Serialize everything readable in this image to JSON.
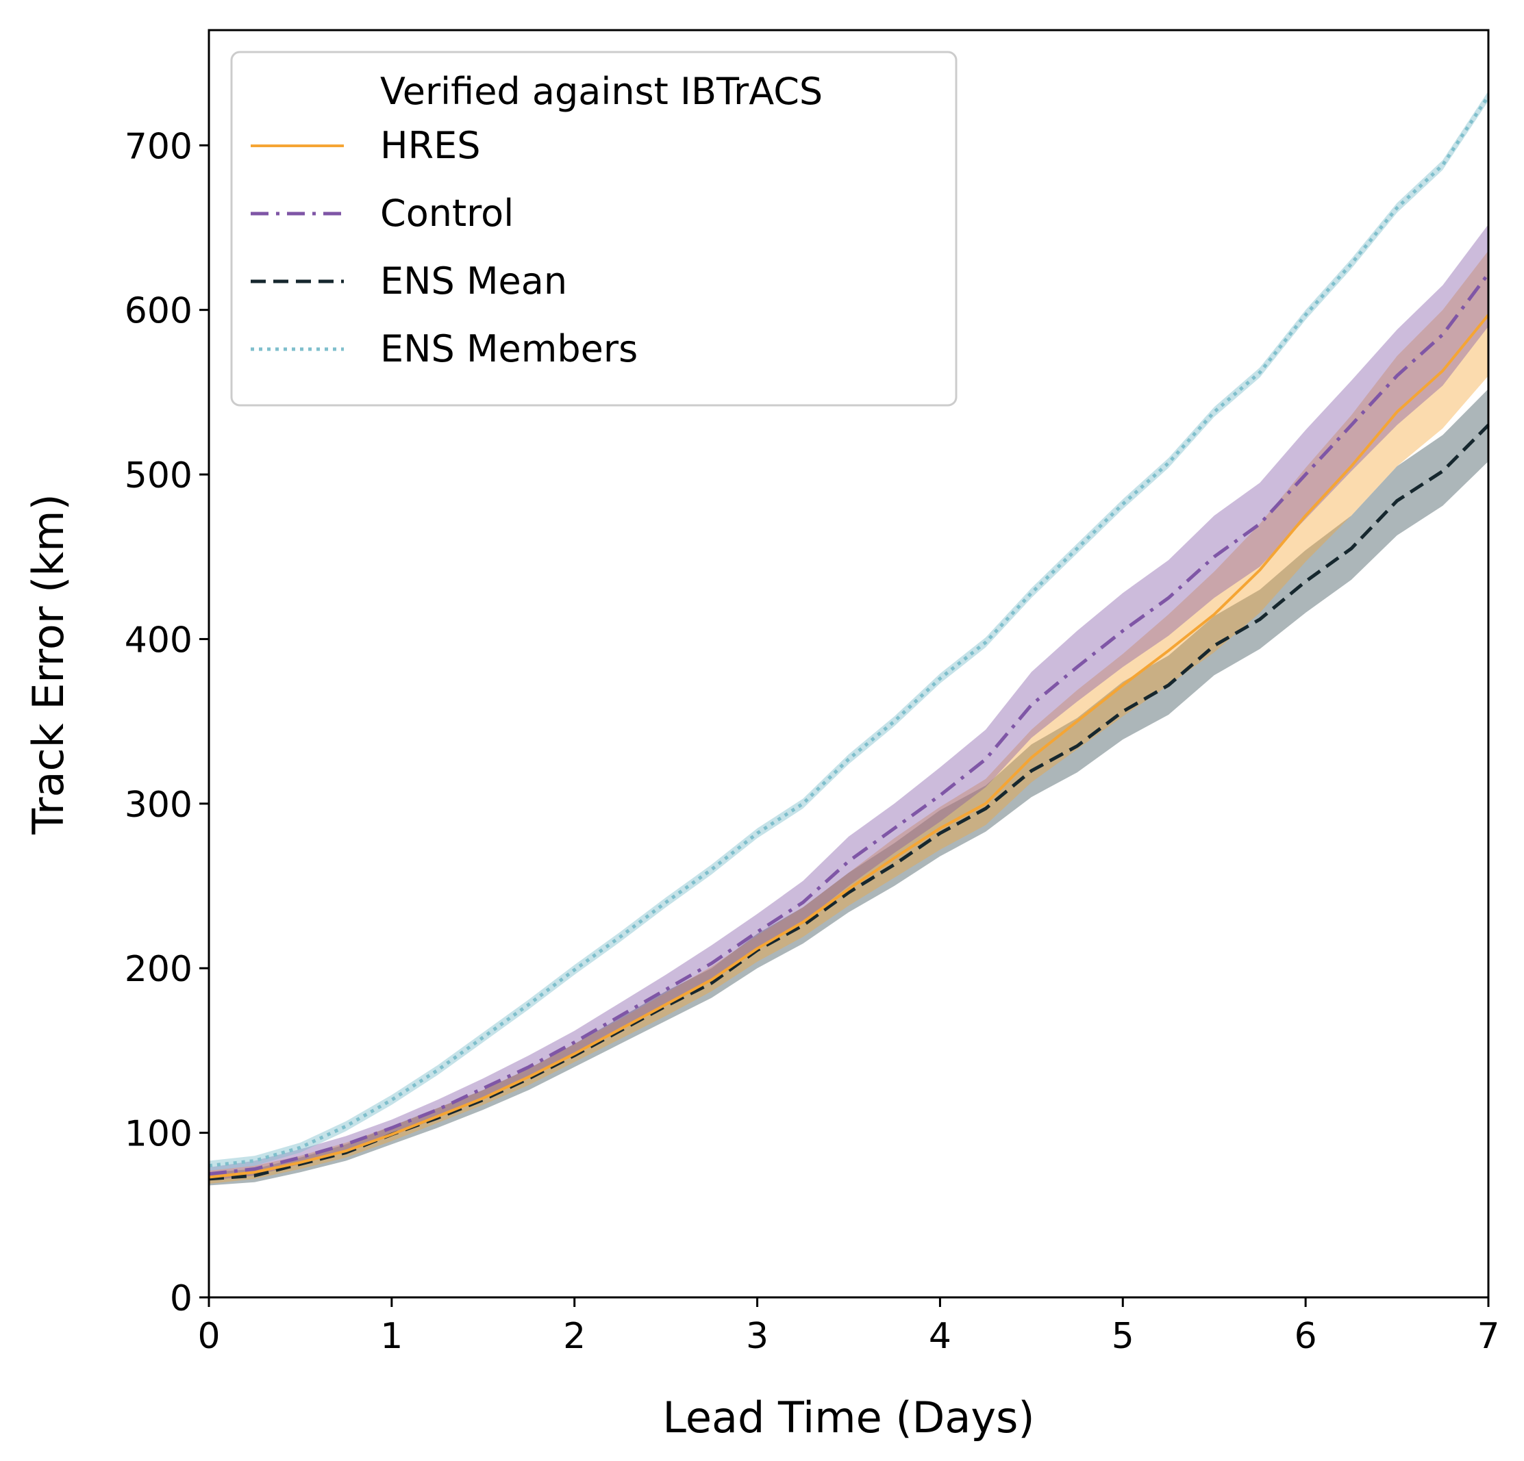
{
  "chart_data": {
    "type": "line",
    "title": "",
    "xlabel": "Lead Time (Days)",
    "ylabel": "Track Error (km)",
    "xlim": [
      0,
      7
    ],
    "ylim": [
      0,
      770
    ],
    "xticks": [
      "0",
      "1",
      "2",
      "3",
      "4",
      "5",
      "6",
      "7"
    ],
    "yticks": [
      "0",
      "100",
      "200",
      "300",
      "400",
      "500",
      "600",
      "700"
    ],
    "grid": false,
    "legend": {
      "position": "top-left",
      "title": "Verified against IBTrACS"
    },
    "x": [
      0,
      0.25,
      0.5,
      0.75,
      1,
      1.25,
      1.5,
      1.75,
      2,
      2.25,
      2.5,
      2.75,
      3,
      3.25,
      3.5,
      3.75,
      4,
      4.25,
      4.5,
      4.75,
      5,
      5.25,
      5.5,
      5.75,
      6,
      6.25,
      6.5,
      6.75,
      7
    ],
    "series": [
      {
        "name": "HRES",
        "color": "#f5a534",
        "style": "solid",
        "values": [
          73,
          76,
          82,
          89,
          99,
          110,
          121,
          134,
          148,
          163,
          178,
          193,
          212,
          228,
          248,
          267,
          285,
          300,
          328,
          350,
          372,
          393,
          415,
          442,
          475,
          505,
          538,
          563,
          597
        ],
        "lower": [
          69,
          72,
          78,
          85,
          95,
          106,
          117,
          129,
          143,
          157,
          171,
          186,
          204,
          219,
          238,
          255,
          272,
          287,
          313,
          333,
          353,
          372,
          392,
          416,
          447,
          475,
          505,
          528,
          560
        ],
        "upper": [
          77,
          80,
          86,
          94,
          104,
          115,
          126,
          139,
          154,
          169,
          185,
          201,
          220,
          237,
          258,
          279,
          298,
          315,
          345,
          369,
          391,
          415,
          441,
          470,
          504,
          536,
          572,
          600,
          636
        ]
      },
      {
        "name": "Control",
        "color": "#7f56a6",
        "style": "dashdot",
        "values": [
          75,
          78,
          85,
          93,
          103,
          114,
          127,
          140,
          155,
          171,
          187,
          203,
          222,
          240,
          265,
          285,
          305,
          327,
          360,
          383,
          405,
          425,
          450,
          470,
          500,
          530,
          560,
          585,
          622
        ],
        "lower": [
          71,
          74,
          81,
          89,
          98,
          109,
          121,
          134,
          148,
          164,
          178,
          193,
          212,
          228,
          250,
          270,
          289,
          310,
          340,
          362,
          383,
          402,
          425,
          444,
          473,
          502,
          530,
          554,
          590
        ],
        "upper": [
          79,
          83,
          90,
          98,
          108,
          120,
          133,
          147,
          162,
          179,
          196,
          214,
          233,
          253,
          280,
          300,
          322,
          345,
          380,
          405,
          428,
          448,
          475,
          495,
          527,
          557,
          588,
          615,
          652
        ]
      },
      {
        "name": "ENS Mean",
        "color": "#16272e",
        "style": "dashed",
        "values": [
          72,
          74,
          81,
          88,
          99,
          109,
          120,
          133,
          147,
          162,
          177,
          191,
          211,
          226,
          246,
          263,
          282,
          297,
          320,
          335,
          356,
          372,
          396,
          412,
          435,
          455,
          484,
          502,
          530
        ],
        "lower": [
          68,
          70,
          76,
          83,
          93,
          103,
          114,
          126,
          140,
          154,
          168,
          182,
          200,
          215,
          234,
          250,
          268,
          283,
          304,
          319,
          339,
          354,
          378,
          394,
          416,
          436,
          463,
          481,
          508
        ],
        "upper": [
          76,
          78,
          85,
          93,
          104,
          115,
          126,
          139,
          154,
          170,
          186,
          200,
          221,
          237,
          258,
          276,
          296,
          311,
          336,
          352,
          374,
          390,
          414,
          430,
          454,
          475,
          505,
          524,
          552
        ]
      },
      {
        "name": "ENS Members",
        "color": "#7fbfcc",
        "style": "dotted",
        "values": [
          80,
          83,
          91,
          104,
          120,
          138,
          158,
          178,
          199,
          219,
          240,
          260,
          282,
          300,
          327,
          350,
          376,
          398,
          428,
          455,
          482,
          507,
          538,
          562,
          597,
          628,
          662,
          688,
          730
        ],
        "lower": [
          77,
          80,
          88,
          101,
          117,
          135,
          155,
          175,
          196,
          216,
          237,
          257,
          279,
          297,
          324,
          347,
          373,
          395,
          425,
          452,
          479,
          504,
          535,
          559,
          594,
          625,
          659,
          685,
          727
        ],
        "upper": [
          83,
          86,
          94,
          107,
          123,
          141,
          161,
          181,
          202,
          222,
          243,
          263,
          285,
          303,
          330,
          353,
          379,
          401,
          431,
          458,
          485,
          510,
          541,
          565,
          600,
          631,
          665,
          691,
          733
        ]
      }
    ]
  }
}
